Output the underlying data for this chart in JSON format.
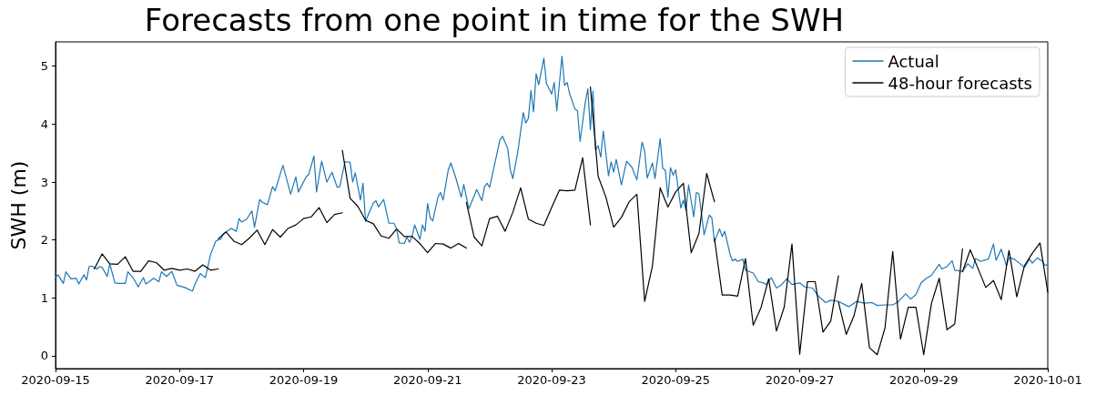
{
  "chart_data": {
    "type": "line",
    "title": "Forecasts from one point in time for the SWH",
    "ylabel": "SWH (m)",
    "xlim": [
      "2020-09-15",
      "2020-10-01"
    ],
    "xticks": [
      "2020-09-15",
      "2020-09-17",
      "2020-09-19",
      "2020-09-21",
      "2020-09-23",
      "2020-09-25",
      "2020-09-27",
      "2020-09-29",
      "2020-10-01"
    ],
    "ylim": [
      -0.22,
      5.42
    ],
    "yticks": [
      0,
      1,
      2,
      3,
      4,
      5
    ],
    "grid": false,
    "legend": "top right",
    "marker": "none",
    "line_style": "solid",
    "series": [
      {
        "name": "Actual",
        "color": "#1f77b4",
        "x": [
          "2020-09-15T00:00",
          "2020-09-15T01:00",
          "2020-09-15T03:00",
          "2020-09-15T04:00",
          "2020-09-15T06:00",
          "2020-09-15T08:00",
          "2020-09-15T09:00",
          "2020-09-15T11:00",
          "2020-09-15T12:00",
          "2020-09-15T13:00",
          "2020-09-15T14:00",
          "2020-09-15T16:00",
          "2020-09-15T17:00",
          "2020-09-15T18:00",
          "2020-09-15T20:00",
          "2020-09-15T21:00",
          "2020-09-15T23:00",
          "2020-09-16T01:00",
          "2020-09-16T03:00",
          "2020-09-16T04:00",
          "2020-09-16T06:00",
          "2020-09-16T08:00",
          "2020-09-16T10:00",
          "2020-09-16T11:00",
          "2020-09-16T14:00",
          "2020-09-16T16:00",
          "2020-09-16T17:00",
          "2020-09-16T19:00",
          "2020-09-16T21:00",
          "2020-09-16T23:00",
          "2020-09-17T02:00",
          "2020-09-17T05:00",
          "2020-09-17T06:00",
          "2020-09-17T08:00",
          "2020-09-17T10:00",
          "2020-09-17T12:00",
          "2020-09-17T14:00",
          "2020-09-17T16:00",
          "2020-09-17T17:00",
          "2020-09-17T20:00",
          "2020-09-17T22:00",
          "2020-09-17T23:00",
          "2020-09-18T00:00",
          "2020-09-18T02:00",
          "2020-09-18T04:00",
          "2020-09-18T05:00",
          "2020-09-18T07:00",
          "2020-09-18T08:00",
          "2020-09-18T10:00",
          "2020-09-18T12:00",
          "2020-09-18T13:00",
          "2020-09-18T16:00",
          "2020-09-18T19:00",
          "2020-09-18T21:00",
          "2020-09-18T22:00",
          "2020-09-19T01:00",
          "2020-09-19T02:00",
          "2020-09-19T04:00",
          "2020-09-19T05:00",
          "2020-09-19T07:00",
          "2020-09-19T09:00",
          "2020-09-19T11:00",
          "2020-09-19T13:00",
          "2020-09-19T14:00",
          "2020-09-19T16:00",
          "2020-09-19T18:00",
          "2020-09-19T19:00",
          "2020-09-19T20:00",
          "2020-09-19T22:00",
          "2020-09-19T23:00",
          "2020-09-20T00:00",
          "2020-09-20T01:00",
          "2020-09-20T03:00",
          "2020-09-20T04:00",
          "2020-09-20T05:00",
          "2020-09-20T07:00",
          "2020-09-20T09:00",
          "2020-09-20T11:00",
          "2020-09-20T12:00",
          "2020-09-20T13:00",
          "2020-09-20T15:00",
          "2020-09-20T16:00",
          "2020-09-20T17:00",
          "2020-09-20T18:00",
          "2020-09-20T19:00",
          "2020-09-20T21:00",
          "2020-09-20T22:00",
          "2020-09-20T23:00",
          "2020-09-21T00:00",
          "2020-09-21T01:00",
          "2020-09-21T02:00",
          "2020-09-21T04:00",
          "2020-09-21T05:00",
          "2020-09-21T06:00",
          "2020-09-21T08:00",
          "2020-09-21T09:00",
          "2020-09-21T11:00",
          "2020-09-21T13:00",
          "2020-09-21T14:00",
          "2020-09-21T15:00",
          "2020-09-21T16:00",
          "2020-09-21T19:00",
          "2020-09-21T21:00",
          "2020-09-21T22:00",
          "2020-09-21T23:00",
          "2020-09-22T00:00",
          "2020-09-22T02:00",
          "2020-09-22T04:00",
          "2020-09-22T05:00",
          "2020-09-22T07:00",
          "2020-09-22T08:00",
          "2020-09-22T09:00",
          "2020-09-22T11:00",
          "2020-09-22T13:00",
          "2020-09-22T14:00",
          "2020-09-22T15:00",
          "2020-09-22T16:00",
          "2020-09-22T17:00",
          "2020-09-22T18:00",
          "2020-09-22T19:00",
          "2020-09-22T21:00",
          "2020-09-22T22:00",
          "2020-09-23T00:00",
          "2020-09-23T01:00",
          "2020-09-23T02:00",
          "2020-09-23T04:00",
          "2020-09-23T05:00",
          "2020-09-23T06:00",
          "2020-09-23T07:00",
          "2020-09-23T09:00",
          "2020-09-23T10:00",
          "2020-09-23T11:00",
          "2020-09-23T13:00",
          "2020-09-23T14:00",
          "2020-09-23T15:00",
          "2020-09-23T16:00",
          "2020-09-23T17:00",
          "2020-09-23T18:00",
          "2020-09-23T19:00",
          "2020-09-23T20:00",
          "2020-09-23T22:00",
          "2020-09-23T23:00",
          "2020-09-24T00:00",
          "2020-09-24T01:00",
          "2020-09-24T03:00",
          "2020-09-24T05:00",
          "2020-09-24T07:00",
          "2020-09-24T09:00",
          "2020-09-24T11:00",
          "2020-09-24T12:00",
          "2020-09-24T13:00",
          "2020-09-24T15:00",
          "2020-09-24T16:00",
          "2020-09-24T18:00",
          "2020-09-24T19:00",
          "2020-09-24T20:00",
          "2020-09-24T21:00",
          "2020-09-24T22:00",
          "2020-09-24T23:00",
          "2020-09-25T00:00",
          "2020-09-25T02:00",
          "2020-09-25T03:00",
          "2020-09-25T04:00",
          "2020-09-25T05:00",
          "2020-09-25T07:00",
          "2020-09-25T08:00",
          "2020-09-25T09:00",
          "2020-09-25T11:00",
          "2020-09-25T13:00",
          "2020-09-25T14:00",
          "2020-09-25T15:00",
          "2020-09-25T17:00",
          "2020-09-25T18:00",
          "2020-09-25T19:00",
          "2020-09-25T21:00",
          "2020-09-25T22:00",
          "2020-09-25T23:00",
          "2020-09-26T00:00",
          "2020-09-26T02:00",
          "2020-09-26T03:00",
          "2020-09-26T06:00",
          "2020-09-26T08:00",
          "2020-09-26T10:00",
          "2020-09-26T11:00",
          "2020-09-26T13:00",
          "2020-09-26T15:00",
          "2020-09-26T17:00",
          "2020-09-26T19:00",
          "2020-09-26T21:00",
          "2020-09-27T00:00",
          "2020-09-27T02:00",
          "2020-09-27T05:00",
          "2020-09-27T07:00",
          "2020-09-27T10:00",
          "2020-09-27T12:00",
          "2020-09-27T15:00",
          "2020-09-27T19:00",
          "2020-09-27T22:00",
          "2020-09-28T01:00",
          "2020-09-28T04:00",
          "2020-09-28T06:00",
          "2020-09-28T09:00",
          "2020-09-28T12:00",
          "2020-09-28T14:00",
          "2020-09-28T17:00",
          "2020-09-28T19:00",
          "2020-09-28T21:00",
          "2020-09-28T23:00",
          "2020-09-29T01:00",
          "2020-09-29T03:00",
          "2020-09-29T06:00",
          "2020-09-29T07:00",
          "2020-09-29T09:00",
          "2020-09-29T11:00",
          "2020-09-29T12:00",
          "2020-09-29T15:00",
          "2020-09-29T17:00",
          "2020-09-29T19:00",
          "2020-09-29T20:00",
          "2020-09-29T22:00",
          "2020-09-30T01:00",
          "2020-09-30T03:00",
          "2020-09-30T04:00",
          "2020-09-30T06:00",
          "2020-09-30T08:00",
          "2020-09-30T09:00",
          "2020-09-30T11:00",
          "2020-09-30T13:00",
          "2020-09-30T15:00",
          "2020-09-30T17:00",
          "2020-09-30T18:00",
          "2020-09-30T20:00",
          "2020-09-30T22:00",
          "2020-09-30T23:00",
          "2020-10-01T00:00"
        ],
        "values": [
          1.35,
          1.4,
          1.25,
          1.45,
          1.33,
          1.34,
          1.24,
          1.4,
          1.31,
          1.54,
          1.55,
          1.5,
          1.54,
          1.53,
          1.37,
          1.59,
          1.26,
          1.25,
          1.25,
          1.45,
          1.35,
          1.19,
          1.35,
          1.24,
          1.34,
          1.28,
          1.45,
          1.37,
          1.46,
          1.22,
          1.18,
          1.12,
          1.24,
          1.42,
          1.35,
          1.75,
          1.98,
          2.02,
          2.11,
          2.2,
          2.15,
          2.37,
          2.31,
          2.36,
          2.5,
          2.22,
          2.7,
          2.65,
          2.61,
          2.92,
          2.85,
          3.29,
          2.79,
          3.09,
          2.83,
          3.09,
          3.13,
          3.45,
          2.83,
          3.36,
          3.0,
          3.17,
          2.91,
          2.92,
          3.35,
          3.34,
          3.0,
          3.16,
          2.69,
          2.98,
          2.32,
          2.43,
          2.64,
          2.68,
          2.57,
          2.7,
          2.29,
          2.29,
          2.19,
          1.95,
          1.94,
          2.05,
          1.96,
          2.06,
          2.26,
          2.01,
          2.26,
          2.15,
          2.63,
          2.38,
          2.33,
          2.74,
          2.82,
          2.69,
          3.21,
          3.33,
          3.06,
          2.74,
          2.96,
          2.74,
          2.54,
          2.87,
          2.68,
          2.92,
          2.98,
          2.91,
          3.32,
          3.73,
          3.79,
          3.58,
          3.21,
          3.06,
          3.55,
          4.2,
          4.02,
          4.1,
          4.58,
          4.21,
          4.87,
          4.68,
          5.14,
          4.7,
          4.52,
          4.72,
          4.23,
          5.17,
          4.67,
          4.72,
          4.52,
          4.26,
          4.23,
          3.7,
          4.37,
          4.61,
          3.9,
          4.57,
          3.55,
          3.63,
          3.43,
          3.88,
          3.11,
          3.35,
          3.17,
          3.39,
          2.95,
          3.36,
          3.26,
          3.04,
          3.69,
          3.53,
          3.07,
          3.33,
          3.06,
          3.75,
          3.24,
          3.2,
          2.74,
          3.25,
          3.12,
          3.21,
          2.55,
          2.69,
          2.51,
          2.95,
          2.4,
          2.82,
          2.8,
          2.09,
          2.43,
          2.38,
          1.97,
          2.19,
          2.06,
          2.15,
          1.76,
          1.64,
          1.67,
          1.63,
          1.67,
          1.48,
          1.43,
          1.28,
          1.26,
          1.23,
          1.35,
          1.17,
          1.23,
          1.33,
          1.23,
          1.26,
          1.19,
          1.17,
          1.04,
          0.92,
          0.96,
          0.94,
          0.85,
          0.94,
          0.91,
          0.92,
          0.87,
          0.88,
          0.88,
          0.93,
          1.07,
          0.98,
          1.06,
          1.26,
          1.34,
          1.39,
          1.58,
          1.5,
          1.54,
          1.64,
          1.48,
          1.46,
          1.59,
          1.51,
          1.68,
          1.63,
          1.67,
          1.93,
          1.65,
          1.84,
          1.56,
          1.69,
          1.67,
          1.6,
          1.53,
          1.67,
          1.6,
          1.69,
          1.63,
          1.56,
          1.58
        ]
      },
      {
        "name": "48-hour forecasts",
        "color": "#000000",
        "x": [
          "2020-09-15T15:00",
          "2020-09-15T18:00",
          "2020-09-15T21:00",
          "2020-09-16T00:00",
          "2020-09-16T03:00",
          "2020-09-16T06:00",
          "2020-09-16T09:00",
          "2020-09-16T12:00",
          "2020-09-16T15:00",
          "2020-09-16T18:00",
          "2020-09-16T21:00",
          "2020-09-17T00:00",
          "2020-09-17T03:00",
          "2020-09-17T06:00",
          "2020-09-17T09:00",
          "2020-09-17T12:00",
          "2020-09-17T15:00"
        ],
        "values": [
          1.5,
          1.76,
          1.59,
          1.58,
          1.71,
          1.46,
          1.46,
          1.64,
          1.61,
          1.48,
          1.51,
          1.48,
          1.5,
          1.46,
          1.57,
          1.48,
          1.5
        ]
      },
      {
        "color": "#000000",
        "x": [
          "2020-09-17T15:00",
          "2020-09-17T18:00",
          "2020-09-17T21:00",
          "2020-09-18T00:00",
          "2020-09-18T03:00",
          "2020-09-18T06:00",
          "2020-09-18T09:00",
          "2020-09-18T12:00",
          "2020-09-18T15:00",
          "2020-09-18T18:00",
          "2020-09-18T21:00",
          "2020-09-19T00:00",
          "2020-09-19T03:00",
          "2020-09-19T06:00",
          "2020-09-19T09:00",
          "2020-09-19T12:00",
          "2020-09-19T15:00"
        ],
        "values": [
          2.02,
          2.14,
          1.98,
          1.92,
          2.03,
          2.17,
          1.92,
          2.18,
          2.05,
          2.2,
          2.26,
          2.37,
          2.4,
          2.56,
          2.3,
          2.44,
          2.47
        ]
      },
      {
        "color": "#000000",
        "x": [
          "2020-09-19T15:00",
          "2020-09-19T18:00",
          "2020-09-19T21:00",
          "2020-09-20T00:00",
          "2020-09-20T03:00",
          "2020-09-20T06:00",
          "2020-09-20T09:00",
          "2020-09-20T12:00",
          "2020-09-20T15:00",
          "2020-09-20T18:00",
          "2020-09-20T21:00",
          "2020-09-21T00:00",
          "2020-09-21T03:00",
          "2020-09-21T06:00",
          "2020-09-21T09:00",
          "2020-09-21T12:00",
          "2020-09-21T15:00"
        ],
        "values": [
          3.55,
          2.72,
          2.58,
          2.34,
          2.28,
          2.07,
          2.03,
          2.19,
          2.06,
          2.06,
          1.94,
          1.78,
          1.94,
          1.93,
          1.86,
          1.94,
          1.86
        ]
      },
      {
        "color": "#000000",
        "x": [
          "2020-09-21T15:00",
          "2020-09-21T18:00",
          "2020-09-21T21:00",
          "2020-09-22T00:00",
          "2020-09-22T03:00",
          "2020-09-22T06:00",
          "2020-09-22T09:00",
          "2020-09-22T12:00",
          "2020-09-22T15:00",
          "2020-09-22T18:00",
          "2020-09-22T21:00",
          "2020-09-23T00:00",
          "2020-09-23T03:00",
          "2020-09-23T06:00",
          "2020-09-23T09:00",
          "2020-09-23T12:00",
          "2020-09-23T15:00"
        ],
        "values": [
          2.65,
          2.05,
          1.9,
          2.37,
          2.41,
          2.15,
          2.48,
          2.9,
          2.36,
          2.29,
          2.25,
          2.56,
          2.86,
          2.85,
          2.86,
          3.42,
          2.26
        ]
      },
      {
        "color": "#000000",
        "x": [
          "2020-09-23T15:00",
          "2020-09-23T18:00",
          "2020-09-23T21:00",
          "2020-09-24T00:00",
          "2020-09-24T03:00",
          "2020-09-24T06:00",
          "2020-09-24T09:00",
          "2020-09-24T12:00",
          "2020-09-24T15:00",
          "2020-09-24T18:00",
          "2020-09-24T21:00",
          "2020-09-25T00:00",
          "2020-09-25T03:00",
          "2020-09-25T06:00",
          "2020-09-25T09:00",
          "2020-09-25T12:00",
          "2020-09-25T15:00"
        ],
        "values": [
          4.64,
          3.1,
          2.74,
          2.22,
          2.39,
          2.66,
          2.79,
          0.94,
          1.55,
          2.9,
          2.57,
          2.83,
          2.98,
          1.78,
          2.11,
          3.15,
          2.66
        ]
      },
      {
        "color": "#000000",
        "x": [
          "2020-09-25T15:00",
          "2020-09-25T18:00",
          "2020-09-25T21:00",
          "2020-09-26T00:00",
          "2020-09-26T03:00",
          "2020-09-26T06:00",
          "2020-09-26T09:00",
          "2020-09-26T12:00",
          "2020-09-26T15:00",
          "2020-09-26T18:00",
          "2020-09-26T21:00",
          "2020-09-27T00:00",
          "2020-09-27T03:00",
          "2020-09-27T06:00",
          "2020-09-27T09:00",
          "2020-09-27T12:00",
          "2020-09-27T15:00"
        ],
        "values": [
          2.03,
          1.05,
          1.05,
          1.03,
          1.68,
          0.53,
          0.83,
          1.33,
          0.43,
          0.84,
          1.93,
          0.03,
          1.28,
          1.28,
          0.41,
          0.6,
          1.38
        ]
      },
      {
        "color": "#000000",
        "x": [
          "2020-09-27T15:00",
          "2020-09-27T18:00",
          "2020-09-27T21:00",
          "2020-09-28T00:00",
          "2020-09-28T03:00",
          "2020-09-28T06:00",
          "2020-09-28T09:00",
          "2020-09-28T12:00",
          "2020-09-28T15:00",
          "2020-09-28T18:00",
          "2020-09-28T21:00",
          "2020-09-29T00:00",
          "2020-09-29T03:00",
          "2020-09-29T06:00",
          "2020-09-29T09:00",
          "2020-09-29T12:00",
          "2020-09-29T15:00"
        ],
        "values": [
          0.93,
          0.37,
          0.69,
          1.25,
          0.14,
          0.02,
          0.48,
          1.8,
          0.29,
          0.84,
          0.84,
          0.02,
          0.91,
          1.34,
          0.45,
          0.55,
          1.85
        ]
      },
      {
        "color": "#000000",
        "x": [
          "2020-09-29T15:00",
          "2020-09-29T18:00",
          "2020-09-29T21:00",
          "2020-09-30T00:00",
          "2020-09-30T03:00",
          "2020-09-30T06:00",
          "2020-09-30T09:00",
          "2020-09-30T12:00",
          "2020-09-30T15:00",
          "2020-09-30T18:00",
          "2020-09-30T21:00",
          "2020-10-01T00:00"
        ],
        "values": [
          1.45,
          1.83,
          1.51,
          1.18,
          1.3,
          0.97,
          1.82,
          1.02,
          1.56,
          1.77,
          1.95,
          1.1
        ]
      }
    ]
  }
}
